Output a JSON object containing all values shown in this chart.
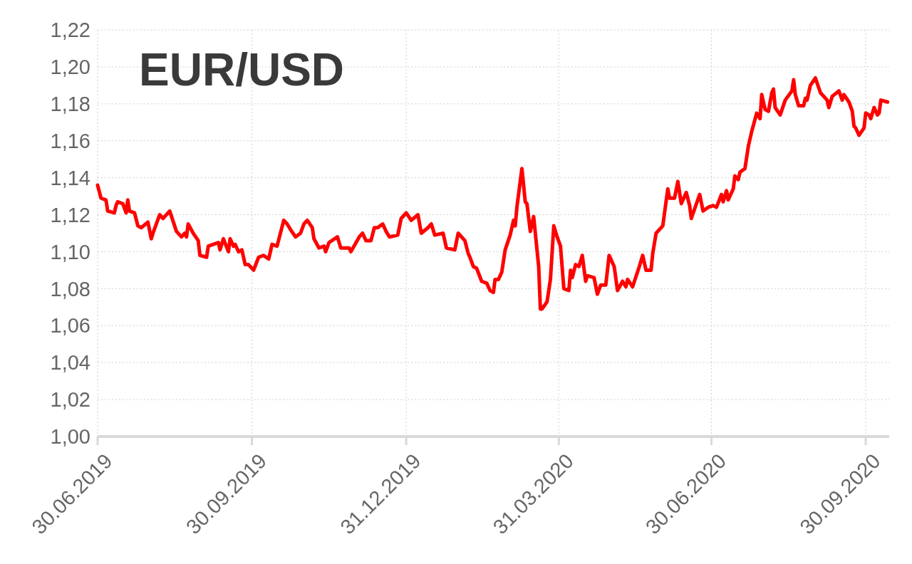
{
  "chart_data": {
    "type": "line",
    "title": "EUR/USD",
    "x": [
      "2019-06-30",
      "2019-07-02",
      "2019-07-05",
      "2019-07-06",
      "2019-07-10",
      "2019-07-11",
      "2019-07-12",
      "2019-07-15",
      "2019-07-17",
      "2019-07-18",
      "2019-07-19",
      "2019-07-22",
      "2019-07-24",
      "2019-07-26",
      "2019-07-30",
      "2019-08-01",
      "2019-08-02",
      "2019-08-06",
      "2019-08-08",
      "2019-08-12",
      "2019-08-16",
      "2019-08-19",
      "2019-08-21",
      "2019-08-22",
      "2019-08-23",
      "2019-08-26",
      "2019-08-29",
      "2019-08-30",
      "2019-09-03",
      "2019-09-04",
      "2019-09-07",
      "2019-09-10",
      "2019-09-11",
      "2019-09-13",
      "2019-09-16",
      "2019-09-17",
      "2019-09-19",
      "2019-09-20",
      "2019-09-22",
      "2019-09-24",
      "2019-09-26",
      "2019-09-28",
      "2019-10-01",
      "2019-10-04",
      "2019-10-07",
      "2019-10-10",
      "2019-10-12",
      "2019-10-15",
      "2019-10-19",
      "2019-10-21",
      "2019-10-23",
      "2019-10-26",
      "2019-10-29",
      "2019-10-31",
      "2019-11-02",
      "2019-11-05",
      "2019-11-06",
      "2019-11-09",
      "2019-11-12",
      "2019-11-13",
      "2019-11-15",
      "2019-11-20",
      "2019-11-22",
      "2019-11-27",
      "2019-11-28",
      "2019-12-03",
      "2019-12-05",
      "2019-12-07",
      "2019-12-10",
      "2019-12-12",
      "2019-12-14",
      "2019-12-17",
      "2019-12-19",
      "2019-12-21",
      "2019-12-26",
      "2019-12-28",
      "2019-12-31",
      "2020-01-03",
      "2020-01-07",
      "2020-01-09",
      "2020-01-13",
      "2020-01-15",
      "2020-01-17",
      "2020-01-22",
      "2020-01-24",
      "2020-01-29",
      "2020-01-31",
      "2020-02-04",
      "2020-02-06",
      "2020-02-07",
      "2020-02-09",
      "2020-02-11",
      "2020-02-14",
      "2020-02-17",
      "2020-02-19",
      "2020-02-21",
      "2020-02-22",
      "2020-02-24",
      "2020-02-26",
      "2020-02-28",
      "2020-03-02",
      "2020-03-04",
      "2020-03-05",
      "2020-03-06",
      "2020-03-09",
      "2020-03-11",
      "2020-03-12",
      "2020-03-14",
      "2020-03-16",
      "2020-03-19",
      "2020-03-20",
      "2020-03-21",
      "2020-03-24",
      "2020-03-26",
      "2020-03-28",
      "2020-03-30",
      "2020-04-01",
      "2020-04-03",
      "2020-04-06",
      "2020-04-07",
      "2020-04-08",
      "2020-04-10",
      "2020-04-12",
      "2020-04-14",
      "2020-04-16",
      "2020-04-17",
      "2020-04-21",
      "2020-04-23",
      "2020-04-25",
      "2020-04-28",
      "2020-04-30",
      "2020-05-03",
      "2020-05-05",
      "2020-05-08",
      "2020-05-10",
      "2020-05-11",
      "2020-05-14",
      "2020-05-18",
      "2020-05-20",
      "2020-05-22",
      "2020-05-25",
      "2020-05-26",
      "2020-05-28",
      "2020-06-01",
      "2020-06-04",
      "2020-06-05",
      "2020-06-08",
      "2020-06-10",
      "2020-06-12",
      "2020-06-15",
      "2020-06-17",
      "2020-06-18",
      "2020-06-23",
      "2020-06-25",
      "2020-06-28",
      "2020-07-01",
      "2020-07-03",
      "2020-07-06",
      "2020-07-07",
      "2020-07-09",
      "2020-07-10",
      "2020-07-13",
      "2020-07-14",
      "2020-07-16",
      "2020-07-17",
      "2020-07-20",
      "2020-07-22",
      "2020-07-24",
      "2020-07-27",
      "2020-07-29",
      "2020-07-30",
      "2020-08-01",
      "2020-08-03",
      "2020-08-05",
      "2020-08-06",
      "2020-08-07",
      "2020-08-10",
      "2020-08-13",
      "2020-08-17",
      "2020-08-18",
      "2020-08-19",
      "2020-08-21",
      "2020-08-24",
      "2020-08-25",
      "2020-08-26",
      "2020-08-28",
      "2020-08-31",
      "2020-09-03",
      "2020-09-07",
      "2020-09-08",
      "2020-09-10",
      "2020-09-14",
      "2020-09-16",
      "2020-09-17",
      "2020-09-20",
      "2020-09-22",
      "2020-09-23",
      "2020-09-24",
      "2020-09-26",
      "2020-09-29",
      "2020-09-30",
      "2020-10-02",
      "2020-10-03",
      "2020-10-05",
      "2020-10-07",
      "2020-10-08",
      "2020-10-09",
      "2020-10-13"
    ],
    "series": [
      {
        "color": "#ff0000",
        "values": [
          1.136,
          1.129,
          1.128,
          1.122,
          1.121,
          1.125,
          1.127,
          1.126,
          1.121,
          1.128,
          1.122,
          1.121,
          1.114,
          1.113,
          1.116,
          1.107,
          1.11,
          1.12,
          1.118,
          1.122,
          1.111,
          1.108,
          1.11,
          1.108,
          1.115,
          1.11,
          1.106,
          1.098,
          1.097,
          1.103,
          1.104,
          1.105,
          1.101,
          1.107,
          1.1,
          1.107,
          1.103,
          1.104,
          1.1,
          1.101,
          1.093,
          1.093,
          1.09,
          1.097,
          1.098,
          1.096,
          1.104,
          1.103,
          1.117,
          1.115,
          1.112,
          1.108,
          1.11,
          1.115,
          1.117,
          1.113,
          1.107,
          1.102,
          1.103,
          1.1,
          1.105,
          1.108,
          1.102,
          1.102,
          1.1,
          1.108,
          1.11,
          1.106,
          1.106,
          1.113,
          1.113,
          1.115,
          1.111,
          1.108,
          1.109,
          1.118,
          1.121,
          1.117,
          1.12,
          1.11,
          1.113,
          1.115,
          1.109,
          1.11,
          1.102,
          1.101,
          1.11,
          1.106,
          1.099,
          1.097,
          1.092,
          1.091,
          1.084,
          1.083,
          1.079,
          1.078,
          1.085,
          1.085,
          1.089,
          1.101,
          1.109,
          1.117,
          1.114,
          1.124,
          1.145,
          1.127,
          1.126,
          1.111,
          1.119,
          1.092,
          1.069,
          1.069,
          1.073,
          1.085,
          1.114,
          1.108,
          1.103,
          1.08,
          1.079,
          1.09,
          1.086,
          1.093,
          1.092,
          1.098,
          1.084,
          1.087,
          1.086,
          1.077,
          1.082,
          1.082,
          1.098,
          1.092,
          1.079,
          1.084,
          1.081,
          1.085,
          1.081,
          1.092,
          1.098,
          1.09,
          1.09,
          1.099,
          1.11,
          1.114,
          1.134,
          1.129,
          1.129,
          1.138,
          1.126,
          1.132,
          1.125,
          1.118,
          1.131,
          1.122,
          1.124,
          1.125,
          1.124,
          1.131,
          1.127,
          1.133,
          1.128,
          1.134,
          1.141,
          1.139,
          1.143,
          1.145,
          1.157,
          1.165,
          1.175,
          1.172,
          1.185,
          1.177,
          1.176,
          1.186,
          1.188,
          1.178,
          1.174,
          1.182,
          1.187,
          1.193,
          1.185,
          1.179,
          1.179,
          1.183,
          1.182,
          1.19,
          1.194,
          1.186,
          1.182,
          1.178,
          1.184,
          1.187,
          1.182,
          1.185,
          1.181,
          1.176,
          1.168,
          1.167,
          1.163,
          1.167,
          1.175,
          1.174,
          1.172,
          1.178,
          1.174,
          1.175,
          1.182,
          1.181
        ]
      }
    ],
    "xlim": [
      "2019-06-30",
      "2020-10-14"
    ],
    "xticks": [
      {
        "value": "2019-06-30",
        "label": "30.06.2019"
      },
      {
        "value": "2019-09-30",
        "label": "30.09.2019"
      },
      {
        "value": "2019-12-31",
        "label": "31.12.2019"
      },
      {
        "value": "2020-03-31",
        "label": "31.03.2020"
      },
      {
        "value": "2020-06-30",
        "label": "30.06.2020"
      },
      {
        "value": "2020-09-30",
        "label": "30.09.2020"
      }
    ],
    "ylim": [
      1.0,
      1.22
    ],
    "yticks": [
      {
        "value": 1.0,
        "label": "1,00"
      },
      {
        "value": 1.02,
        "label": "1,02"
      },
      {
        "value": 1.04,
        "label": "1,04"
      },
      {
        "value": 1.06,
        "label": "1,06"
      },
      {
        "value": 1.08,
        "label": "1,08"
      },
      {
        "value": 1.1,
        "label": "1,10"
      },
      {
        "value": 1.12,
        "label": "1,12"
      },
      {
        "value": 1.14,
        "label": "1,14"
      },
      {
        "value": 1.16,
        "label": "1,16"
      },
      {
        "value": 1.18,
        "label": "1,18"
      },
      {
        "value": 1.2,
        "label": "1,20"
      },
      {
        "value": 1.22,
        "label": "1,22"
      }
    ],
    "grid": true,
    "line_style": "solid"
  }
}
